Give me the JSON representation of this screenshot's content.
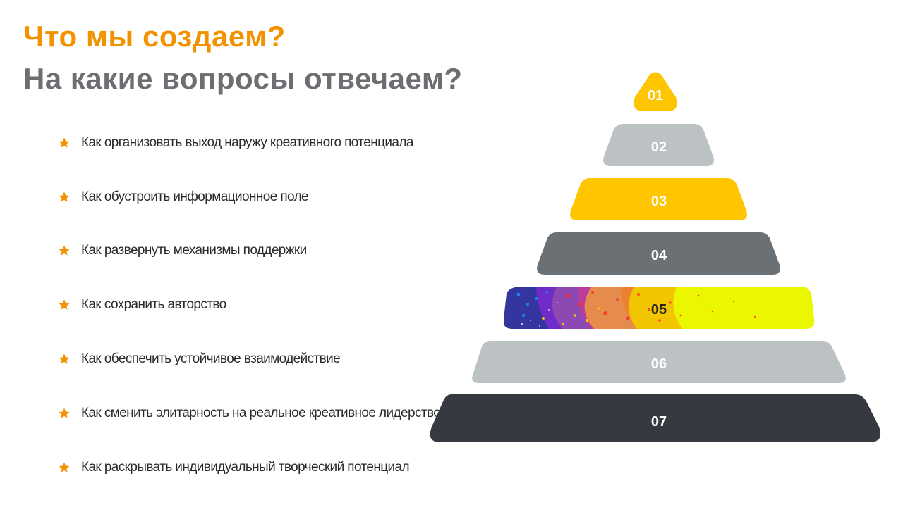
{
  "colors": {
    "accent_orange": "#F39200",
    "heading_gray": "#6D6E71",
    "yellow": "#FFC600",
    "light_gray": "#BCC1C4",
    "mid_gray": "#6B7074",
    "dark": "#363A40",
    "lime": "#EAF700"
  },
  "header": {
    "title": "Что мы создаем?",
    "subtitle": "На какие вопросы отвечаем?"
  },
  "questions": [
    {
      "icon": "star-icon",
      "text": "Как организовать выход наружу креативного потенциала"
    },
    {
      "icon": "star-icon",
      "text": "Как обустроить информационное поле"
    },
    {
      "icon": "star-icon",
      "text": "Как развернуть механизмы поддержки"
    },
    {
      "icon": "star-icon",
      "text": "Как  сохранить авторство"
    },
    {
      "icon": "star-icon",
      "text": "Как обеспечить устойчивое взаимодействие"
    },
    {
      "icon": "star-icon",
      "text": "Как сменить элитарность на реальное креативное лидерство"
    },
    {
      "icon": "star-icon",
      "text": "Как раскрывать индивидуальный творческий потенциал"
    }
  ],
  "pyramid": {
    "levels": [
      {
        "label": "01",
        "fill": "#FFC600",
        "text_color": "#FFFFFF"
      },
      {
        "label": "02",
        "fill": "#BCC1C4",
        "text_color": "#FFFFFF"
      },
      {
        "label": "03",
        "fill": "#FFC600",
        "text_color": "#FFFFFF"
      },
      {
        "label": "04",
        "fill": "#6B7074",
        "text_color": "#FFFFFF"
      },
      {
        "label": "05",
        "fill": "#EAF700",
        "text_color": "#222222"
      },
      {
        "label": "06",
        "fill": "#BCC1C4",
        "text_color": "#FFFFFF"
      },
      {
        "label": "07",
        "fill": "#363A40",
        "text_color": "#FFFFFF"
      }
    ]
  }
}
